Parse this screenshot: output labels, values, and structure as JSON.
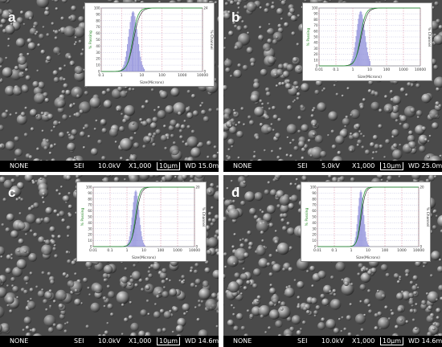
{
  "panels": [
    {
      "letter": "a",
      "bar": {
        "signal": "NONE",
        "detector": "SEI",
        "voltage": "10.0kV",
        "mag": "X1,000",
        "scale": "10μm",
        "wd": "WD 15.0mm"
      },
      "inset": {
        "x_ticks": [
          "0.1",
          "1",
          "10",
          "100",
          "1000",
          "10000"
        ],
        "y_left": [
          "100",
          "90",
          "80",
          "70",
          "60",
          "50",
          "40",
          "30",
          "20",
          "10",
          "0"
        ],
        "y_right": [
          "24",
          "",
          "",
          "",
          "",
          "",
          "",
          "",
          "",
          "",
          "0"
        ],
        "ylabel_left": "% Passing",
        "ylabel_right": "% Channel",
        "xlabel": "Size(Microns)"
      }
    },
    {
      "letter": "b",
      "bar": {
        "signal": "NONE",
        "detector": "SEI",
        "voltage": "5.0kV",
        "mag": "X1,000",
        "scale": "10μm",
        "wd": "WD 25.0mm"
      },
      "inset": {
        "x_ticks": [
          "0.01",
          "0.1",
          "1",
          "10",
          "100",
          "1000",
          "10000"
        ],
        "y_left": [
          "100",
          "90",
          "80",
          "70",
          "60",
          "50",
          "40",
          "30",
          "20",
          "10",
          "0"
        ],
        "y_right": [
          "",
          "",
          "",
          "",
          "",
          "",
          "",
          "",
          "",
          "",
          ""
        ],
        "ylabel_left": "% Passing",
        "ylabel_right": "% Channel",
        "xlabel": "Size(Microns)"
      }
    },
    {
      "letter": "c",
      "bar": {
        "signal": "NONE",
        "detector": "SEI",
        "voltage": "10.0kV",
        "mag": "X1,000",
        "scale": "10μm",
        "wd": "WD 14.6mm"
      },
      "inset": {
        "x_ticks": [
          "0.01",
          "0.1",
          "1",
          "10",
          "100",
          "1000",
          "10000"
        ],
        "y_left": [
          "100",
          "90",
          "80",
          "70",
          "60",
          "50",
          "40",
          "30",
          "20",
          "10",
          "0"
        ],
        "y_right": [
          "20",
          "",
          "",
          "",
          "",
          "",
          "",
          "",
          "",
          "",
          "0"
        ],
        "ylabel_left": "% Passing",
        "ylabel_right": "% Channel",
        "xlabel": "Size(Microns)"
      }
    },
    {
      "letter": "d",
      "bar": {
        "signal": "NONE",
        "detector": "SEI",
        "voltage": "10.0kV",
        "mag": "X1,000",
        "scale": "10μm",
        "wd": "WD 14.6mm"
      },
      "inset": {
        "x_ticks": [
          "0.01",
          "0.1",
          "1",
          "10",
          "100",
          "1000",
          "10000"
        ],
        "y_left": [
          "100",
          "90",
          "80",
          "70",
          "60",
          "50",
          "40",
          "30",
          "20",
          "10",
          "0"
        ],
        "y_right": [
          "20",
          "",
          "",
          "",
          "",
          "",
          "",
          "",
          "",
          "",
          "0"
        ],
        "ylabel_left": "% Passing",
        "ylabel_right": "% Channel",
        "xlabel": "Size(Microns)"
      }
    }
  ]
}
